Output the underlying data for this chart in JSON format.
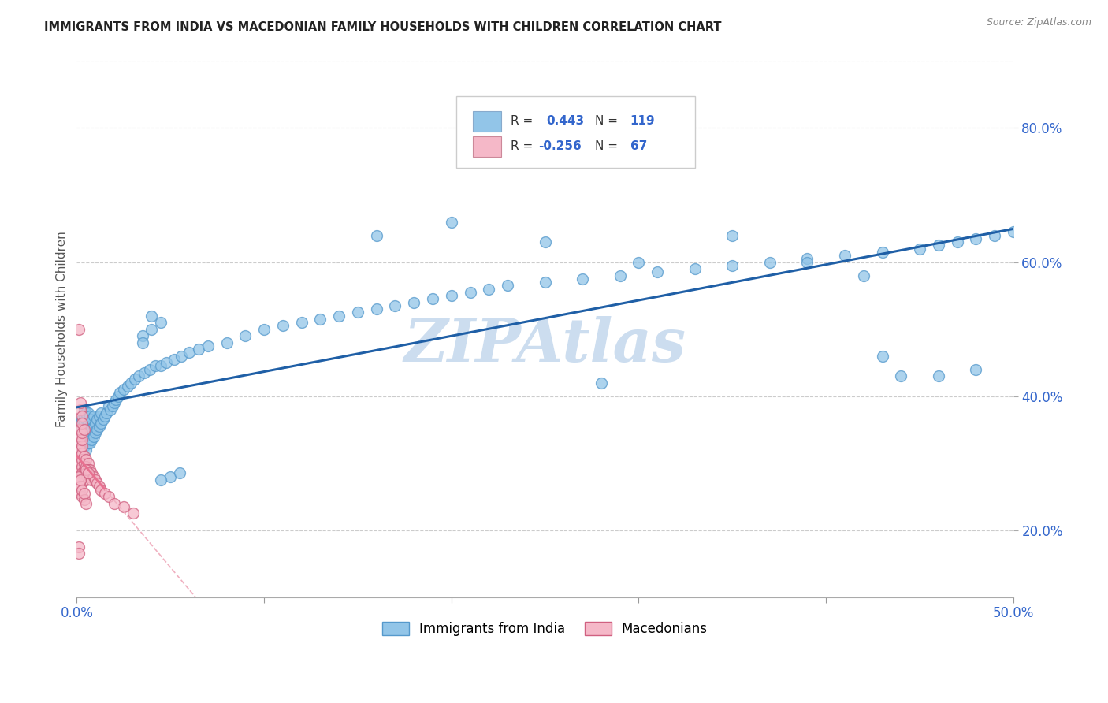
{
  "title": "IMMIGRANTS FROM INDIA VS MACEDONIAN FAMILY HOUSEHOLDS WITH CHILDREN CORRELATION CHART",
  "source": "Source: ZipAtlas.com",
  "ylabel_label": "Family Households with Children",
  "xlim": [
    0.0,
    0.5
  ],
  "ylim": [
    0.1,
    0.9
  ],
  "ytick_values": [
    0.2,
    0.4,
    0.6,
    0.8
  ],
  "legend_india_label": "Immigrants from India",
  "legend_mace_label": "Macedonians",
  "R_india": 0.443,
  "N_india": 119,
  "R_mace": -0.256,
  "N_mace": 67,
  "blue_color": "#92c5e8",
  "pink_color": "#f5b8c8",
  "trend_blue": "#1f5fa6",
  "trend_pink": "#e87090",
  "trend_pink_dashed": "#f0b0c0",
  "background": "#ffffff",
  "grid_color": "#cccccc",
  "title_color": "#222222",
  "axis_label_color": "#3366cc",
  "watermark_color": "#ccddef",
  "india_points_x": [
    0.001,
    0.001,
    0.002,
    0.002,
    0.002,
    0.003,
    0.003,
    0.003,
    0.003,
    0.004,
    0.004,
    0.004,
    0.004,
    0.004,
    0.004,
    0.005,
    0.005,
    0.005,
    0.005,
    0.005,
    0.006,
    0.006,
    0.006,
    0.006,
    0.007,
    0.007,
    0.007,
    0.007,
    0.008,
    0.008,
    0.008,
    0.009,
    0.009,
    0.009,
    0.01,
    0.01,
    0.011,
    0.011,
    0.012,
    0.012,
    0.013,
    0.013,
    0.014,
    0.015,
    0.016,
    0.017,
    0.018,
    0.019,
    0.02,
    0.021,
    0.022,
    0.023,
    0.025,
    0.027,
    0.029,
    0.031,
    0.033,
    0.036,
    0.039,
    0.042,
    0.045,
    0.048,
    0.052,
    0.056,
    0.06,
    0.065,
    0.07,
    0.08,
    0.09,
    0.1,
    0.11,
    0.12,
    0.13,
    0.14,
    0.15,
    0.16,
    0.17,
    0.18,
    0.19,
    0.2,
    0.21,
    0.22,
    0.23,
    0.25,
    0.27,
    0.29,
    0.31,
    0.33,
    0.35,
    0.37,
    0.39,
    0.41,
    0.43,
    0.45,
    0.46,
    0.47,
    0.48,
    0.49,
    0.5,
    0.035,
    0.04,
    0.035,
    0.045,
    0.04,
    0.05,
    0.055,
    0.045,
    0.16,
    0.2,
    0.25,
    0.3,
    0.35,
    0.39,
    0.42,
    0.44,
    0.43,
    0.28,
    0.46,
    0.48
  ],
  "india_points_y": [
    0.335,
    0.34,
    0.32,
    0.345,
    0.36,
    0.315,
    0.33,
    0.35,
    0.365,
    0.325,
    0.34,
    0.35,
    0.36,
    0.37,
    0.38,
    0.32,
    0.335,
    0.35,
    0.365,
    0.375,
    0.33,
    0.345,
    0.36,
    0.375,
    0.33,
    0.345,
    0.355,
    0.37,
    0.335,
    0.35,
    0.365,
    0.34,
    0.355,
    0.37,
    0.345,
    0.36,
    0.35,
    0.365,
    0.355,
    0.37,
    0.36,
    0.375,
    0.365,
    0.37,
    0.375,
    0.385,
    0.38,
    0.385,
    0.39,
    0.395,
    0.4,
    0.405,
    0.41,
    0.415,
    0.42,
    0.425,
    0.43,
    0.435,
    0.44,
    0.445,
    0.445,
    0.45,
    0.455,
    0.46,
    0.465,
    0.47,
    0.475,
    0.48,
    0.49,
    0.5,
    0.505,
    0.51,
    0.515,
    0.52,
    0.525,
    0.53,
    0.535,
    0.54,
    0.545,
    0.55,
    0.555,
    0.56,
    0.565,
    0.57,
    0.575,
    0.58,
    0.585,
    0.59,
    0.595,
    0.6,
    0.605,
    0.61,
    0.615,
    0.62,
    0.625,
    0.63,
    0.635,
    0.64,
    0.645,
    0.49,
    0.52,
    0.48,
    0.51,
    0.5,
    0.28,
    0.285,
    0.275,
    0.64,
    0.66,
    0.63,
    0.6,
    0.64,
    0.6,
    0.58,
    0.43,
    0.46,
    0.42,
    0.43,
    0.44
  ],
  "mace_points_x": [
    0.001,
    0.001,
    0.001,
    0.001,
    0.001,
    0.001,
    0.001,
    0.002,
    0.002,
    0.002,
    0.002,
    0.002,
    0.002,
    0.002,
    0.002,
    0.003,
    0.003,
    0.003,
    0.003,
    0.003,
    0.003,
    0.003,
    0.004,
    0.004,
    0.004,
    0.004,
    0.005,
    0.005,
    0.005,
    0.005,
    0.006,
    0.006,
    0.007,
    0.007,
    0.008,
    0.008,
    0.009,
    0.01,
    0.011,
    0.012,
    0.013,
    0.015,
    0.017,
    0.02,
    0.025,
    0.03,
    0.001,
    0.001,
    0.001,
    0.002,
    0.002,
    0.002,
    0.003,
    0.003,
    0.004,
    0.004,
    0.005,
    0.001,
    0.002,
    0.002,
    0.003,
    0.003,
    0.004,
    0.005,
    0.006,
    0.001,
    0.001
  ],
  "mace_points_y": [
    0.33,
    0.34,
    0.35,
    0.31,
    0.32,
    0.295,
    0.285,
    0.33,
    0.32,
    0.31,
    0.3,
    0.29,
    0.28,
    0.34,
    0.35,
    0.315,
    0.305,
    0.295,
    0.285,
    0.325,
    0.335,
    0.345,
    0.31,
    0.3,
    0.29,
    0.28,
    0.305,
    0.295,
    0.285,
    0.275,
    0.3,
    0.29,
    0.29,
    0.28,
    0.285,
    0.275,
    0.28,
    0.275,
    0.27,
    0.265,
    0.26,
    0.255,
    0.25,
    0.24,
    0.235,
    0.225,
    0.26,
    0.27,
    0.28,
    0.255,
    0.265,
    0.275,
    0.25,
    0.26,
    0.245,
    0.255,
    0.24,
    0.5,
    0.38,
    0.39,
    0.37,
    0.36,
    0.35,
    0.29,
    0.285,
    0.175,
    0.165
  ]
}
